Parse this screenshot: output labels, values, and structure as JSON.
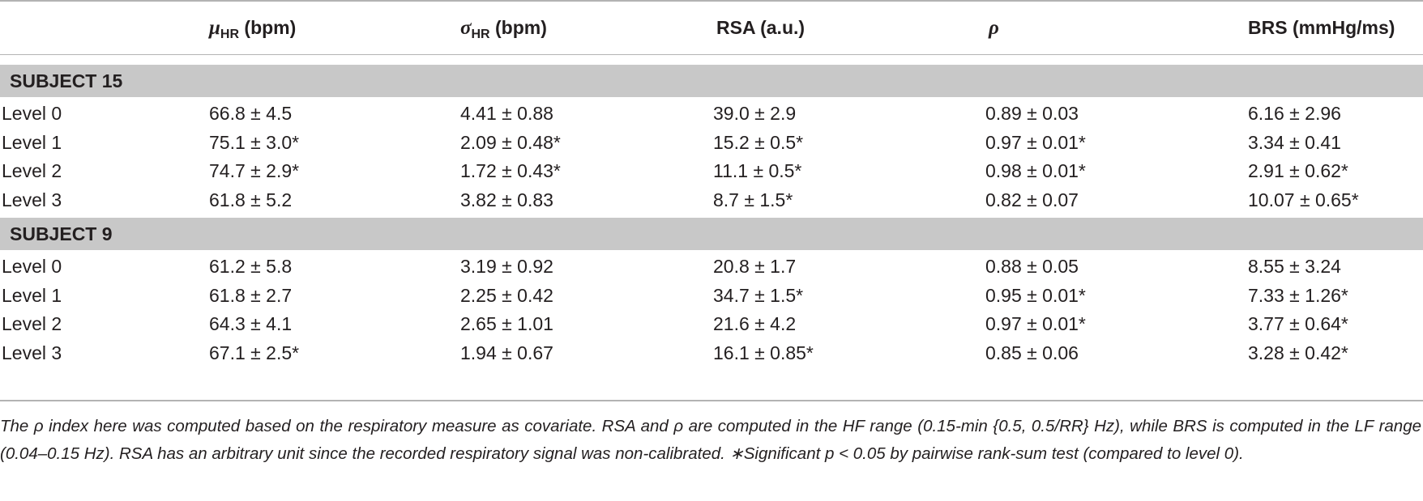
{
  "table": {
    "headers": [
      {
        "sym": "μ",
        "sub": "HR",
        "rest": " (bpm)"
      },
      {
        "sym": "σ",
        "sub": "HR",
        "rest": " (bpm)"
      },
      {
        "sym": "",
        "sub": "",
        "rest": "RSA (a.u.)"
      },
      {
        "sym": "ρ",
        "sub": "",
        "rest": ""
      },
      {
        "sym": "",
        "sub": "",
        "rest": "BRS (mmHg/ms)"
      }
    ],
    "groups": [
      {
        "title": "SUBJECT 15",
        "rows": [
          [
            "Level 0",
            "66.8 ± 4.5",
            "4.41 ± 0.88",
            "39.0 ± 2.9",
            "0.89 ± 0.03",
            "6.16 ± 2.96"
          ],
          [
            "Level 1",
            "75.1 ± 3.0*",
            "2.09 ± 0.48*",
            "15.2 ± 0.5*",
            "0.97 ± 0.01*",
            "3.34 ± 0.41"
          ],
          [
            "Level 2",
            "74.7 ± 2.9*",
            "1.72 ± 0.43*",
            "11.1 ± 0.5*",
            "0.98 ± 0.01*",
            "2.91 ± 0.62*"
          ],
          [
            "Level 3",
            "61.8 ± 5.2",
            "3.82 ± 0.83",
            "8.7 ± 1.5*",
            "0.82 ± 0.07",
            "10.07 ± 0.65*"
          ]
        ]
      },
      {
        "title": "SUBJECT 9",
        "rows": [
          [
            "Level 0",
            "61.2 ± 5.8",
            "3.19 ± 0.92",
            "20.8 ± 1.7",
            "0.88 ± 0.05",
            "8.55 ± 3.24"
          ],
          [
            "Level 1",
            "61.8 ± 2.7",
            "2.25 ± 0.42",
            "34.7 ± 1.5*",
            "0.95 ± 0.01*",
            "7.33 ± 1.26*"
          ],
          [
            "Level 2",
            "64.3 ± 4.1",
            "2.65 ± 1.01",
            "21.6 ± 4.2",
            "0.97 ± 0.01*",
            "3.77 ± 0.64*"
          ],
          [
            "Level 3",
            "67.1 ± 2.5*",
            "1.94 ± 0.67",
            "16.1 ± 0.85*",
            "0.85 ± 0.06",
            "3.28 ± 0.42*"
          ]
        ]
      }
    ]
  },
  "caption": "The ρ index here was computed based on the respiratory measure as covariate. RSA and ρ are computed in the HF range (0.15-min {0.5, 0.5/RR} Hz), while BRS is computed in the LF range (0.04–0.15 Hz). RSA has an arbitrary unit since the recorded respiratory signal was non-calibrated. ∗Significant p < 0.05 by pairwise rank-sum test (compared to level 0)."
}
